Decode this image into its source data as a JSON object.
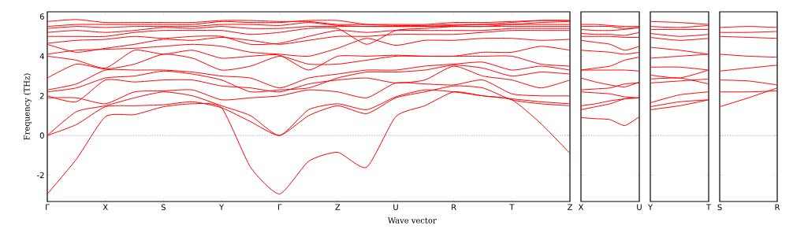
{
  "chart_data": [
    {
      "type": "line",
      "xlabel": "Wave vector",
      "ylabel": "Frequency (THz)",
      "categories": [
        "Γ",
        null,
        "X",
        null,
        "S",
        null,
        "Y",
        null,
        "Γ",
        null,
        "Z",
        null,
        "U",
        null,
        "R",
        null,
        "T",
        null,
        "Z"
      ],
      "ylim": [
        -3.33,
        6.24
      ],
      "yticks": [
        -2,
        0,
        2,
        4,
        6
      ],
      "ref_lines": [
        {
          "axis": "y",
          "value": 0,
          "color": "#0000ff",
          "line_style": "dotted"
        }
      ],
      "series": [
        {
          "color": "#ff0000",
          "values": [
            -2.95,
            -1.2,
            0.95,
            1.05,
            1.45,
            1.6,
            1.4,
            -1.6,
            -2.95,
            -1.3,
            -0.85,
            -1.6,
            0.95,
            1.5,
            2.2,
            2.0,
            1.8,
            0.6,
            -0.9
          ]
        },
        {
          "color": "#ff0000",
          "values": [
            0,
            0.55,
            1.45,
            1.5,
            1.55,
            1.7,
            1.4,
            0.7,
            0,
            1.0,
            1.5,
            1.1,
            1.9,
            2.2,
            2.5,
            2.4,
            1.8,
            1.6,
            1.5
          ]
        },
        {
          "color": "#ff0000",
          "values": [
            0,
            1.2,
            1.5,
            1.9,
            2.2,
            2.0,
            1.5,
            1.0,
            0,
            1.3,
            1.6,
            1.3,
            1.95,
            2.3,
            2.2,
            2.0,
            1.85,
            1.7,
            1.6
          ]
        },
        {
          "color": "#ff0000",
          "values": [
            1.9,
            1.9,
            1.6,
            2.2,
            2.25,
            2.3,
            1.8,
            1.9,
            2.0,
            2.3,
            2.2,
            1.9,
            2.65,
            2.6,
            2.55,
            2.8,
            2.1,
            2.0,
            2.0
          ]
        },
        {
          "color": "#ff0000",
          "values": [
            2.0,
            1.7,
            2.8,
            2.7,
            2.8,
            2.8,
            2.5,
            2.4,
            2.2,
            2.6,
            2.8,
            2.9,
            2.65,
            2.8,
            3.5,
            3.0,
            2.8,
            2.4,
            2.8
          ]
        },
        {
          "color": "#ff0000",
          "values": [
            2.2,
            2.4,
            2.9,
            3.0,
            3.25,
            3.1,
            2.8,
            2.2,
            2.3,
            2.4,
            2.9,
            3.2,
            3.2,
            3.3,
            3.55,
            3.4,
            3.0,
            3.2,
            3.1
          ]
        },
        {
          "color": "#ff0000",
          "values": [
            2.3,
            2.6,
            3.3,
            3.3,
            3.3,
            3.2,
            3.0,
            2.9,
            2.4,
            2.9,
            3.1,
            3.3,
            3.3,
            3.5,
            3.6,
            3.7,
            3.3,
            3.5,
            3.3
          ]
        },
        {
          "color": "#ff0000",
          "values": [
            2.9,
            3.6,
            3.35,
            3.6,
            4.1,
            3.9,
            3.3,
            3.5,
            4.0,
            3.6,
            3.6,
            3.8,
            4.0,
            4.0,
            4.0,
            4.0,
            4.0,
            3.6,
            3.5
          ]
        },
        {
          "color": "#ff0000",
          "values": [
            4.0,
            3.8,
            3.4,
            4.3,
            4.1,
            4.3,
            3.9,
            4.0,
            4.05,
            3.3,
            4.0,
            4.0,
            4.05,
            4.0,
            4.0,
            4.2,
            4.2,
            4.5,
            4.3
          ]
        },
        {
          "color": "#ff0000",
          "values": [
            4.1,
            4.3,
            4.35,
            4.4,
            4.5,
            4.6,
            4.5,
            4.2,
            4.1,
            4.0,
            4.4,
            4.9,
            4.55,
            4.8,
            4.8,
            4.9,
            4.9,
            4.8,
            4.85
          ]
        },
        {
          "color": "#ff0000",
          "values": [
            4.6,
            4.2,
            4.4,
            4.6,
            4.85,
            4.8,
            4.95,
            4.8,
            4.6,
            4.8,
            5.0,
            5.0,
            5.1,
            5.1,
            5.1,
            5.2,
            5.3,
            5.3,
            5.3
          ]
        },
        {
          "color": "#ff0000",
          "values": [
            4.65,
            4.8,
            4.85,
            5.0,
            4.9,
            5.0,
            5.0,
            4.6,
            4.65,
            5.0,
            5.3,
            5.2,
            5.3,
            5.3,
            5.3,
            5.3,
            5.4,
            5.4,
            5.4
          ]
        },
        {
          "color": "#ff0000",
          "values": [
            5.0,
            5.0,
            5.0,
            5.2,
            5.3,
            5.3,
            5.3,
            5.1,
            5.2,
            5.4,
            5.4,
            4.6,
            5.3,
            5.4,
            5.5,
            5.5,
            5.5,
            5.5,
            5.5
          ]
        },
        {
          "color": "#ff0000",
          "values": [
            5.2,
            5.3,
            5.2,
            5.3,
            5.45,
            5.4,
            5.5,
            5.4,
            5.4,
            5.5,
            5.5,
            5.5,
            5.5,
            5.5,
            5.5,
            5.5,
            5.6,
            5.6,
            5.6
          ]
        },
        {
          "color": "#ff0000",
          "values": [
            5.4,
            5.5,
            5.45,
            5.5,
            5.5,
            5.5,
            5.6,
            5.6,
            5.55,
            5.7,
            5.55,
            5.5,
            5.5,
            5.5,
            5.55,
            5.6,
            5.6,
            5.7,
            5.75
          ]
        },
        {
          "color": "#ff0000",
          "values": [
            5.5,
            5.6,
            5.6,
            5.6,
            5.6,
            5.6,
            5.75,
            5.7,
            5.7,
            5.8,
            5.8,
            5.6,
            5.55,
            5.55,
            5.6,
            5.6,
            5.7,
            5.8,
            5.8
          ]
        },
        {
          "color": "#ff0000",
          "values": [
            5.75,
            5.85,
            5.7,
            5.7,
            5.7,
            5.7,
            5.8,
            5.8,
            5.75,
            5.75,
            5.6,
            5.6,
            5.6,
            5.6,
            5.7,
            5.7,
            5.75,
            5.8,
            5.8
          ]
        }
      ]
    },
    {
      "type": "line",
      "categories": [
        "X",
        null,
        null,
        null,
        "U"
      ],
      "ylim": [
        -3.33,
        6.24
      ],
      "yticks": [
        -2,
        0,
        2,
        4,
        6
      ],
      "tick_labels": "x",
      "ref_lines": [
        {
          "axis": "y",
          "value": 0,
          "color": "#0000ff",
          "line_style": "dotted"
        }
      ],
      "series": [
        {
          "color": "#ff0000",
          "values": [
            0.9,
            0.85,
            0.8,
            0.5,
            0.95
          ]
        },
        {
          "color": "#ff0000",
          "values": [
            1.3,
            1.45,
            1.6,
            1.85,
            1.9
          ]
        },
        {
          "color": "#ff0000",
          "values": [
            1.5,
            1.6,
            1.75,
            1.85,
            1.9
          ]
        },
        {
          "color": "#ff0000",
          "values": [
            2.2,
            2.15,
            2.1,
            1.95,
            1.9
          ]
        },
        {
          "color": "#ff0000",
          "values": [
            2.3,
            2.35,
            2.4,
            2.6,
            2.65
          ]
        },
        {
          "color": "#ff0000",
          "values": [
            2.9,
            2.7,
            2.55,
            2.45,
            2.7
          ]
        },
        {
          "color": "#ff0000",
          "values": [
            3.3,
            3.3,
            3.3,
            3.3,
            3.25
          ]
        },
        {
          "color": "#ff0000",
          "values": [
            3.3,
            3.4,
            3.5,
            3.8,
            3.95
          ]
        },
        {
          "color": "#ff0000",
          "values": [
            4.3,
            4.25,
            4.2,
            4.1,
            4.2
          ]
        },
        {
          "color": "#ff0000",
          "values": [
            4.8,
            4.7,
            4.6,
            4.3,
            4.5
          ]
        },
        {
          "color": "#ff0000",
          "values": [
            5.0,
            5.0,
            5.0,
            4.95,
            4.95
          ]
        },
        {
          "color": "#ff0000",
          "values": [
            5.15,
            5.1,
            5.1,
            5.05,
            5.2
          ]
        },
        {
          "color": "#ff0000",
          "values": [
            5.35,
            5.3,
            5.3,
            5.35,
            5.45
          ]
        },
        {
          "color": "#ff0000",
          "values": [
            5.5,
            5.5,
            5.5,
            5.4,
            5.45
          ]
        },
        {
          "color": "#ff0000",
          "values": [
            5.6,
            5.6,
            5.55,
            5.5,
            5.5
          ]
        }
      ]
    },
    {
      "type": "line",
      "categories": [
        "Y",
        null,
        "T"
      ],
      "ylim": [
        -3.33,
        6.24
      ],
      "yticks": [
        -2,
        0,
        2,
        4,
        6
      ],
      "tick_labels": "x",
      "ref_lines": [
        {
          "axis": "y",
          "value": 0,
          "color": "#0000ff",
          "line_style": "dotted"
        }
      ],
      "series": [
        {
          "color": "#ff0000",
          "values": [
            1.3,
            1.5,
            1.8
          ]
        },
        {
          "color": "#ff0000",
          "values": [
            1.45,
            1.7,
            1.8
          ]
        },
        {
          "color": "#ff0000",
          "values": [
            1.65,
            2.05,
            2.2
          ]
        },
        {
          "color": "#ff0000",
          "values": [
            2.65,
            2.75,
            2.85
          ]
        },
        {
          "color": "#ff0000",
          "values": [
            2.85,
            2.9,
            2.6
          ]
        },
        {
          "color": "#ff0000",
          "values": [
            3.05,
            2.9,
            3.3
          ]
        },
        {
          "color": "#ff0000",
          "values": [
            3.45,
            3.45,
            3.3
          ]
        },
        {
          "color": "#ff0000",
          "values": [
            3.9,
            4.0,
            4.1
          ]
        },
        {
          "color": "#ff0000",
          "values": [
            4.45,
            4.3,
            4.1
          ]
        },
        {
          "color": "#ff0000",
          "values": [
            4.95,
            4.8,
            4.9
          ]
        },
        {
          "color": "#ff0000",
          "values": [
            5.15,
            5.0,
            5.1
          ]
        },
        {
          "color": "#ff0000",
          "values": [
            5.35,
            5.35,
            5.35
          ]
        },
        {
          "color": "#ff0000",
          "values": [
            5.5,
            5.45,
            5.55
          ]
        },
        {
          "color": "#ff0000",
          "values": [
            5.75,
            5.7,
            5.6
          ]
        }
      ]
    },
    {
      "type": "line",
      "categories": [
        "S",
        null,
        "R"
      ],
      "ylim": [
        -3.33,
        6.24
      ],
      "yticks": [
        -2,
        0,
        2,
        4,
        6
      ],
      "tick_labels": "x",
      "ref_lines": [
        {
          "axis": "y",
          "value": 0,
          "color": "#0000ff",
          "line_style": "dotted"
        }
      ],
      "series": [
        {
          "color": "#ff0000",
          "values": [
            1.45,
            1.9,
            2.4
          ]
        },
        {
          "color": "#ff0000",
          "values": [
            2.2,
            2.2,
            2.25
          ]
        },
        {
          "color": "#ff0000",
          "values": [
            2.8,
            2.75,
            2.55
          ]
        },
        {
          "color": "#ff0000",
          "values": [
            3.25,
            3.4,
            3.55
          ]
        },
        {
          "color": "#ff0000",
          "values": [
            4.1,
            4.0,
            3.95
          ]
        },
        {
          "color": "#ff0000",
          "values": [
            5.0,
            4.95,
            4.9
          ]
        },
        {
          "color": "#ff0000",
          "values": [
            5.2,
            5.2,
            5.25
          ]
        },
        {
          "color": "#ff0000",
          "values": [
            5.45,
            5.5,
            5.45
          ]
        }
      ]
    }
  ]
}
